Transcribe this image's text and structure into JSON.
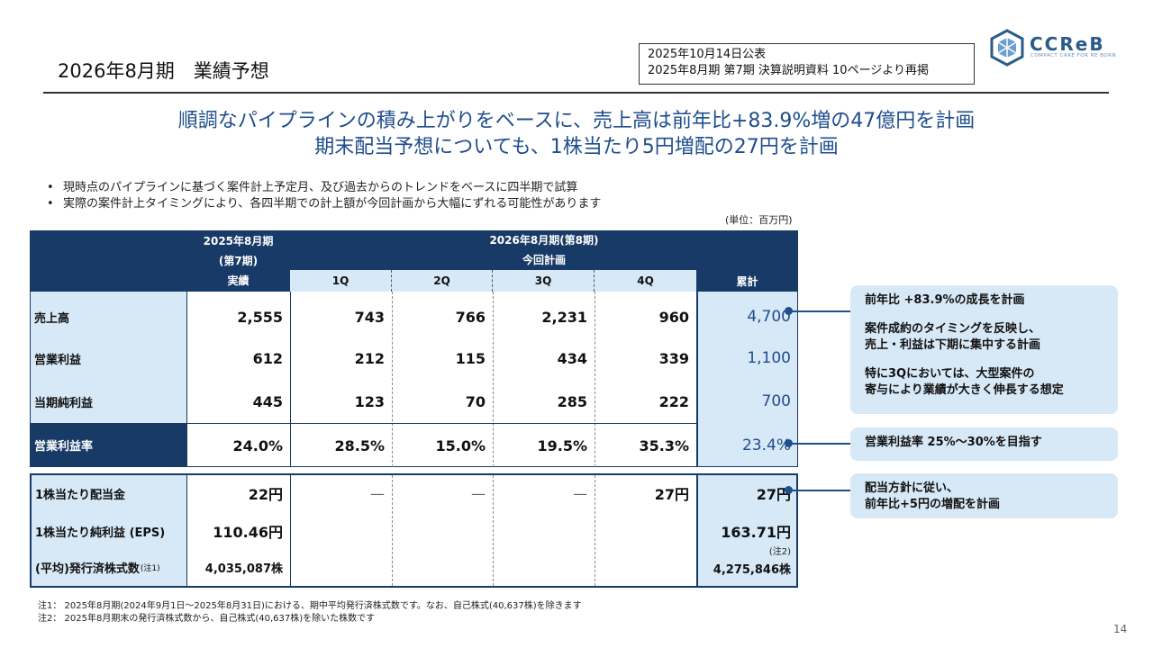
{
  "header": {
    "title": "2026年8月期　業績予想",
    "source_line1": "2025年10月14日公表",
    "source_line2": "2025年8月期 第7期 決算説明資料 10ページより再掲",
    "logo_text": "CCReB",
    "logo_sub": "COMPACT CARE FOR RE BORN"
  },
  "headline": {
    "line1": "順調なパイプラインの積み上がりをベースに、売上高は前年比+83.9%増の47億円を計画",
    "line2": "期末配当予想についても、1株当たり5円増配の27円を計画"
  },
  "bullets": [
    "現時点のパイプラインに基づく案件計上予定月、及び過去からのトレンドをベースに四半期で試算",
    "実際の案件計上タイミングにより、各四半期での計上額が今回計画から大幅にずれる可能性があります"
  ],
  "unit": "(単位：百万円)",
  "table": {
    "prev_header_1": "2025年8月期",
    "prev_header_2": "(第7期)",
    "prev_header_3": "実績",
    "plan_header_1": "2026年8月期(第8期)",
    "plan_header_2": "今回計画",
    "q_headers": [
      "1Q",
      "2Q",
      "3Q",
      "4Q"
    ],
    "cum_header": "累計",
    "rows": [
      {
        "label": "売上高",
        "prev": "2,555",
        "q": [
          "743",
          "766",
          "2,231",
          "960"
        ],
        "cum": "4,700"
      },
      {
        "label": "営業利益",
        "prev": "612",
        "q": [
          "212",
          "115",
          "434",
          "339"
        ],
        "cum": "1,100"
      },
      {
        "label": "当期純利益",
        "prev": "445",
        "q": [
          "123",
          "70",
          "285",
          "222"
        ],
        "cum": "700"
      },
      {
        "label": "営業利益率",
        "prev": "24.0%",
        "q": [
          "28.5%",
          "15.0%",
          "19.5%",
          "35.3%"
        ],
        "cum": "23.4%"
      }
    ],
    "dividend": {
      "label": "1株当たり配当金",
      "prev": "22円",
      "q": [
        "—",
        "—",
        "—",
        "27円"
      ],
      "cum": "27円"
    },
    "eps": {
      "label": "1株当たり純利益 (EPS)",
      "prev": "110.46円",
      "cum": "163.71円"
    },
    "shares": {
      "label": "(平均)発行済株式数",
      "sup": "(注1)",
      "prev": "4,035,087株",
      "cum_note": "(注2)",
      "cum": "4,275,846株"
    }
  },
  "callouts": {
    "c1_l1": "前年比 +83.9%の成長を計画",
    "c1_l2": "案件成約のタイミングを反映し、",
    "c1_l3": "売上・利益は下期に集中する計画",
    "c1_l4": "特に3Qにおいては、大型案件の",
    "c1_l5": "寄与により業績が大きく伸長する想定",
    "c2": "営業利益率 25%～30%を目指す",
    "c3_l1": "配当方針に従い、",
    "c3_l2": "前年比+5円の増配を計画"
  },
  "notes": [
    "注1： 2025年8月期(2024年9月1日～2025年8月31日)における、期中平均発行済株式数です。なお、自己株式(40,637株)を除きます",
    "注2： 2025年8月期末の発行済株式数から、自己株式(40,637株)を除いた株数です"
  ],
  "page_number": "14",
  "colors": {
    "navy": "#173a66",
    "light_blue": "#d7e8f6",
    "accent": "#1f4e8c"
  }
}
